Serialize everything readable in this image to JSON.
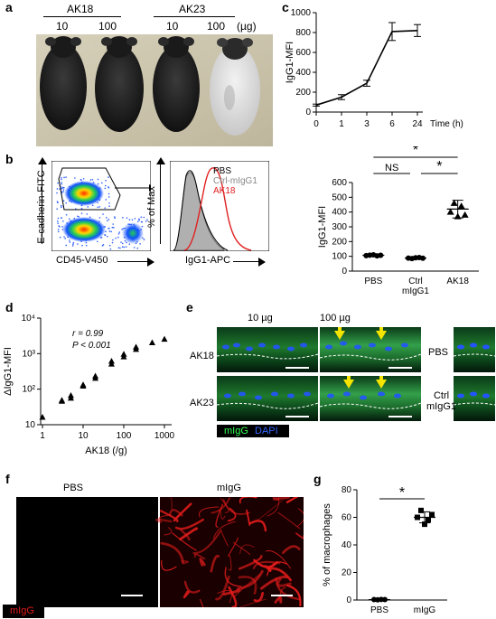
{
  "panels": {
    "a": {
      "label": "a",
      "groups": [
        "AK18",
        "AK23"
      ],
      "doses": [
        "10",
        "100",
        "10",
        "100"
      ],
      "unit": "(µg)"
    },
    "b": {
      "label": "b",
      "flow_yaxis": "E-cadherin-FITC",
      "flow_xaxis": "CD45-V450",
      "hist_yaxis": "% of Max",
      "hist_xaxis": "IgG1-APC",
      "legend": [
        "PBS",
        "Ctrl-mIgG1",
        "AK18"
      ],
      "legend_colors": [
        "#000000",
        "#888888",
        "#e02020"
      ]
    },
    "c": {
      "label": "c"
    },
    "d": {
      "label": "d",
      "r_text": "r = 0.99",
      "p_text": "P < 0.001"
    },
    "e": {
      "label": "e",
      "col_labels": [
        "10 µg",
        "100 µg"
      ],
      "row_labels": [
        "AK18",
        "AK23"
      ],
      "side_labels": [
        "PBS",
        "Ctrl\nmIgG1"
      ],
      "legend_mIgG": "mIgG",
      "legend_DAPI": "DAPI"
    },
    "f": {
      "label": "f",
      "titles": [
        "PBS",
        "mIgG"
      ],
      "legend": "mIgG"
    },
    "g": {
      "label": "g"
    }
  },
  "chart_data": [
    {
      "id": "c",
      "type": "line",
      "x": [
        "0",
        "1",
        "3",
        "6",
        "24"
      ],
      "values": [
        70,
        150,
        290,
        810,
        820
      ],
      "errors": [
        10,
        25,
        30,
        90,
        60
      ],
      "xlabel": "Time (h)",
      "ylabel": "IgG1-MFI",
      "ylim": [
        0,
        1000
      ],
      "yticks": [
        0,
        200,
        400,
        600,
        800,
        1000
      ]
    },
    {
      "id": "b_right",
      "type": "scatter",
      "categories": [
        "PBS",
        "Ctrl\nmIgG1",
        "AK18"
      ],
      "points": [
        [
          105,
          108,
          110,
          103,
          107
        ],
        [
          88,
          85,
          90,
          92,
          87
        ],
        [
          400,
          460,
          370,
          440,
          380
        ]
      ],
      "means": [
        107,
        88,
        420
      ],
      "sd": [
        4,
        4,
        60
      ],
      "ylabel": "IgG1-MFI",
      "ylim": [
        0,
        600
      ],
      "yticks": [
        0,
        100,
        200,
        300,
        400,
        500,
        600
      ],
      "sig": [
        {
          "from": 0,
          "to": 2,
          "label": "*"
        },
        {
          "from": 0,
          "to": 1,
          "label": "NS"
        },
        {
          "from": 1,
          "to": 2,
          "label": "*"
        }
      ]
    },
    {
      "id": "d",
      "type": "scatter",
      "x_scale": "log",
      "y_scale": "log",
      "points": [
        [
          1,
          16
        ],
        [
          3,
          45
        ],
        [
          3,
          48
        ],
        [
          5,
          55
        ],
        [
          5,
          65
        ],
        [
          10,
          120
        ],
        [
          10,
          130
        ],
        [
          20,
          200
        ],
        [
          20,
          230
        ],
        [
          50,
          500
        ],
        [
          50,
          600
        ],
        [
          100,
          800
        ],
        [
          100,
          950
        ],
        [
          200,
          1300
        ],
        [
          200,
          1500
        ],
        [
          500,
          2000
        ],
        [
          1000,
          2500
        ]
      ],
      "xlabel": "AK18 (/g)",
      "ylabel": "ΔIgG1-MFI",
      "xticks": [
        "1",
        "10",
        "100",
        "1000"
      ],
      "yticks": [
        "10",
        "10²",
        "10³",
        "10⁴"
      ]
    },
    {
      "id": "g",
      "type": "scatter",
      "categories": [
        "PBS",
        "mIgG"
      ],
      "points": [
        [
          0.3,
          0.2,
          0.4,
          0.3
        ],
        [
          60,
          65,
          55,
          58,
          62
        ]
      ],
      "means": [
        0.3,
        60
      ],
      "sd": [
        0.1,
        4
      ],
      "ylabel": "% of macrophages",
      "ylim": [
        0,
        80
      ],
      "yticks": [
        0,
        20,
        40,
        60,
        80
      ],
      "sig": [
        {
          "from": 0,
          "to": 1,
          "label": "*"
        }
      ]
    }
  ]
}
